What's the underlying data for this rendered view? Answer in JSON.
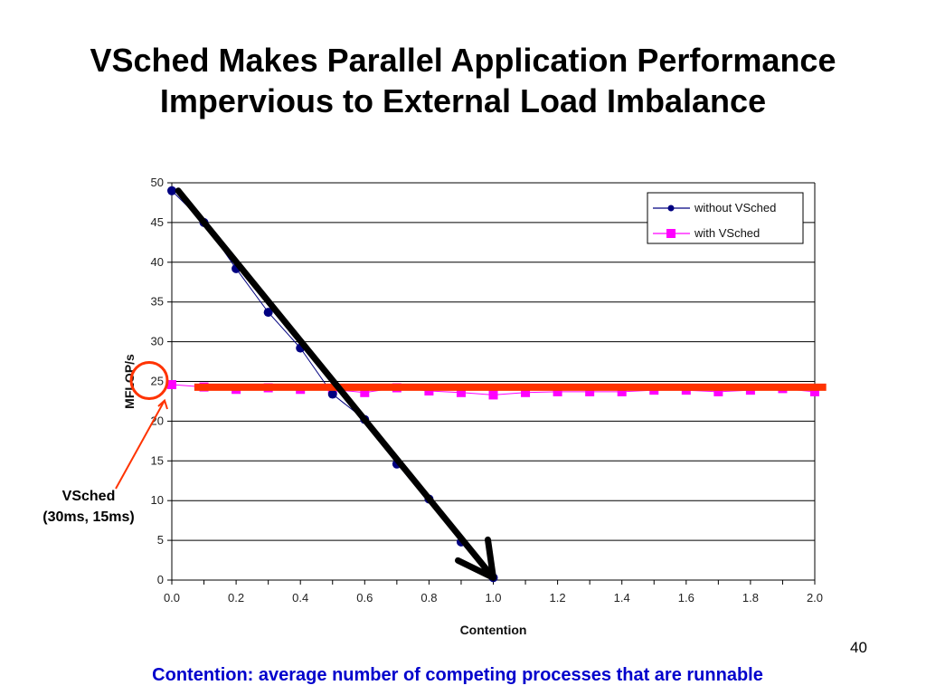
{
  "slide": {
    "title_line1": "VSched Makes Parallel Application Performance",
    "title_line2": "Impervious to External Load Imbalance",
    "footer": "Contention: average number of competing processes that are runnable",
    "page_number": "40",
    "callout_line1": "VSched",
    "callout_line2": "(30ms, 15ms)"
  },
  "colors": {
    "without_vsched": "#000080",
    "with_vsched": "#ff00ff",
    "annotation_red": "#ff3300",
    "annotation_black": "#000000",
    "footer_text": "#0000cc"
  },
  "chart_data": {
    "type": "line",
    "xlabel": "Contention",
    "ylabel": "MFLOP/s",
    "xlim": [
      0,
      2.0
    ],
    "ylim": [
      0,
      50
    ],
    "grid": "horizontal",
    "legend_position": "top-right",
    "x_ticks": [
      "0.0",
      "0.2",
      "0.4",
      "0.6",
      "0.8",
      "1.0",
      "1.2",
      "1.4",
      "1.6",
      "1.8",
      "2.0"
    ],
    "y_ticks": [
      "0",
      "5",
      "10",
      "15",
      "20",
      "25",
      "30",
      "35",
      "40",
      "45",
      "50"
    ],
    "series": [
      {
        "name": "without VSched",
        "marker": "circle",
        "x": [
          0.0,
          0.1,
          0.2,
          0.3,
          0.4,
          0.5,
          0.6,
          0.7,
          0.8,
          0.9,
          1.0
        ],
        "values": [
          49.0,
          45.0,
          39.2,
          33.7,
          29.2,
          23.4,
          20.2,
          14.6,
          10.2,
          4.8,
          0.3
        ]
      },
      {
        "name": "with VSched",
        "marker": "square",
        "x": [
          0.0,
          0.1,
          0.2,
          0.3,
          0.4,
          0.5,
          0.6,
          0.7,
          0.8,
          0.9,
          1.0,
          1.1,
          1.2,
          1.3,
          1.4,
          1.5,
          1.6,
          1.7,
          1.8,
          1.9,
          2.0
        ],
        "values": [
          24.6,
          24.3,
          24.0,
          24.2,
          24.0,
          24.0,
          23.6,
          24.2,
          23.8,
          23.6,
          23.3,
          23.6,
          23.7,
          23.7,
          23.7,
          23.9,
          23.9,
          23.7,
          23.9,
          24.1,
          23.7
        ]
      }
    ],
    "annotations": [
      {
        "type": "horizontal-line",
        "color": "red",
        "y": 24.5,
        "x_from": 0.07,
        "x_to": 2.03
      },
      {
        "type": "arrow",
        "color": "black",
        "from": [
          0.02,
          49
        ],
        "to": [
          1.0,
          0.3
        ]
      },
      {
        "type": "circle",
        "color": "red",
        "label_target": "25"
      }
    ]
  }
}
